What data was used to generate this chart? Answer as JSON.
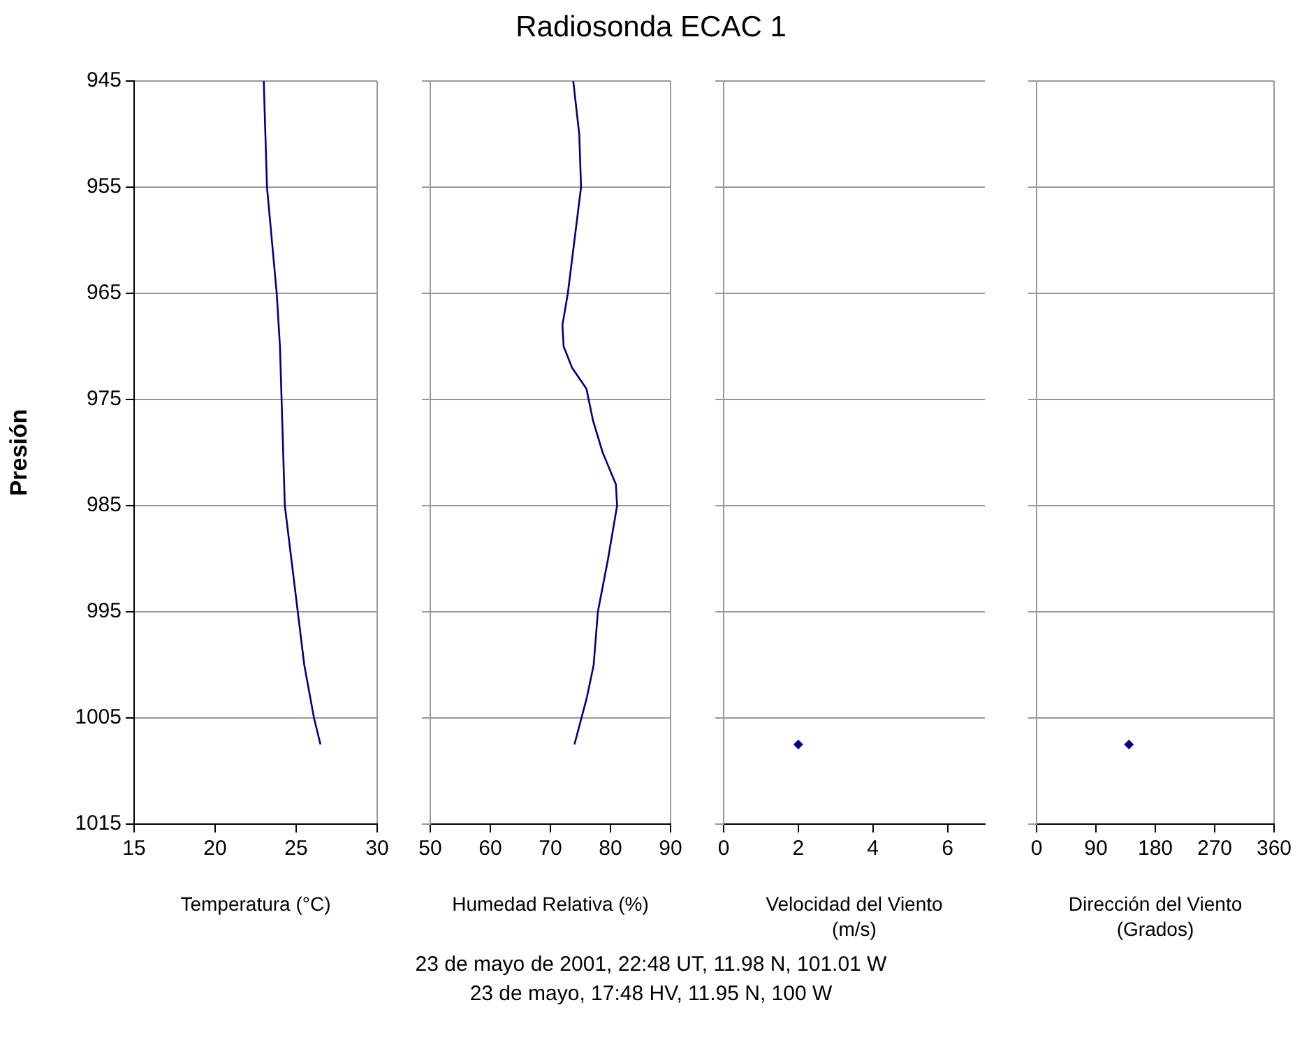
{
  "chart_data": [
    {
      "type": "line",
      "ylabel": "Presión",
      "xlabel": "Temperatura (°C)",
      "annotations": [
        "23 de mayo de 2001, 22:48 UT, 11.98 N, 101.01 W",
        "23 de mayo, 17:48 HV, 11.95 N, 100 W"
      ],
      "xlim": [
        15,
        30
      ],
      "xticks": [
        15,
        20,
        25,
        30
      ],
      "ylim": [
        1015,
        945
      ],
      "yticks": [
        945,
        955,
        965,
        975,
        985,
        995,
        1005,
        1015
      ],
      "grid": "y",
      "marker": "none",
      "line_style": "solid",
      "series": [
        {
          "color": "#000080",
          "x": [
            23.0,
            23.1,
            23.2,
            23.5,
            23.8,
            24.0,
            24.1,
            24.2,
            24.3,
            24.7,
            25.1,
            25.5,
            26.1,
            26.5
          ],
          "values": [
            945,
            950,
            955,
            960,
            965,
            970,
            975,
            980,
            985,
            990,
            995,
            1000,
            1005,
            1007.5
          ]
        }
      ]
    },
    {
      "type": "line",
      "title": "Radiosonda ECAC 1",
      "xlabel": "Humedad Relativa (%)",
      "xlim": [
        50,
        90
      ],
      "xticks": [
        50,
        60,
        70,
        80,
        90
      ],
      "ylim": [
        1015,
        945
      ],
      "yticks": [
        945,
        955,
        965,
        975,
        985,
        995,
        1005,
        1015
      ],
      "tick_labels": "x",
      "grid": "y",
      "marker": "none",
      "line_style": "solid",
      "series": [
        {
          "color": "#000080",
          "x": [
            73.8,
            74.8,
            75.1,
            74.0,
            72.9,
            72.0,
            72.2,
            73.6,
            76.0,
            77.1,
            78.7,
            80.9,
            81.1,
            79.6,
            77.9,
            77.2,
            76.1,
            74.0
          ],
          "values": [
            945,
            950,
            955,
            960,
            965,
            968,
            970,
            972,
            974,
            977,
            980,
            983,
            985,
            990,
            995,
            1000,
            1003,
            1007.5
          ]
        }
      ]
    },
    {
      "type": "scatter",
      "xlabel": "Velocidad del Viento (m/s)",
      "xlim": [
        0,
        7
      ],
      "xticks": [
        0,
        2,
        4,
        6
      ],
      "ylim": [
        1015,
        945
      ],
      "yticks": [
        945,
        955,
        965,
        975,
        985,
        995,
        1005,
        1015
      ],
      "tick_labels": "x",
      "grid": "y",
      "marker": "diamond",
      "series": [
        {
          "color": "#000080",
          "x": [
            2
          ],
          "values": [
            1007.5
          ]
        }
      ]
    },
    {
      "type": "scatter",
      "xlabel": "Dirección del Viento (Grados)",
      "xlim": [
        0,
        360
      ],
      "xticks": [
        0,
        90,
        180,
        270,
        360
      ],
      "ylim": [
        1015,
        945
      ],
      "yticks": [
        945,
        955,
        965,
        975,
        985,
        995,
        1005,
        1015
      ],
      "tick_labels": "x",
      "grid": "y",
      "marker": "diamond",
      "series": [
        {
          "color": "#000080",
          "x": [
            140
          ],
          "values": [
            1007.5
          ]
        }
      ]
    }
  ]
}
